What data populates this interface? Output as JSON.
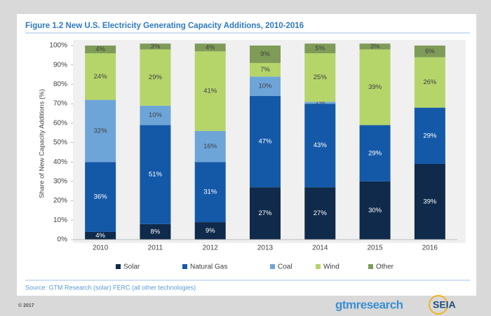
{
  "chart_data": {
    "type": "stacked_bar",
    "title": "Figure 1.2  New U.S. Electricity Generating Capacity Additions, 2010-2016",
    "y_label": "Share of New Capacity Additions (%)",
    "categories": [
      "2010",
      "2011",
      "2012",
      "2013",
      "2014",
      "2015",
      "2016"
    ],
    "series": [
      {
        "name": "Solar",
        "color": "#0f2a4a",
        "values": [
          4,
          8,
          9,
          27,
          27,
          30,
          39
        ],
        "value_labels": [
          "4%",
          "8%",
          "9%",
          "27%",
          "27%",
          "30%",
          "39%"
        ]
      },
      {
        "name": "Natural Gas",
        "color": "#1459a8",
        "values": [
          36,
          51,
          31,
          47,
          43,
          29,
          29
        ],
        "value_labels": [
          "36%",
          "51%",
          "31%",
          "47%",
          "43%",
          "29%",
          "29%"
        ]
      },
      {
        "name": "Coal",
        "color": "#6ea5d8",
        "values": [
          32,
          10,
          16,
          10,
          1,
          null,
          null
        ],
        "value_labels": [
          "32%",
          "10%",
          "16%",
          "10%",
          "1%",
          null,
          null
        ]
      },
      {
        "name": "Wind",
        "color": "#b5d56b",
        "values": [
          24,
          29,
          41,
          7,
          25,
          39,
          26
        ],
        "value_labels": [
          "24%",
          "29%",
          "41%",
          "7%",
          "25%",
          "39%",
          "26%"
        ]
      },
      {
        "name": "Other",
        "color": "#7f9b58",
        "values": [
          4,
          3,
          4,
          9,
          5,
          3,
          6
        ],
        "value_labels": [
          "4%",
          "3%",
          "4%",
          "9%",
          "5%",
          "3%",
          "6%"
        ]
      }
    ],
    "ylim": [
      0,
      100
    ],
    "yticks": [
      {
        "value": 0,
        "label": "0%"
      },
      {
        "value": 10,
        "label": "10%"
      },
      {
        "value": 20,
        "label": "20%"
      },
      {
        "value": 30,
        "label": "30%"
      },
      {
        "value": 40,
        "label": "40%"
      },
      {
        "value": 50,
        "label": "50%"
      },
      {
        "value": 60,
        "label": "60%"
      },
      {
        "value": 70,
        "label": "70%"
      },
      {
        "value": 80,
        "label": "80%"
      },
      {
        "value": 90,
        "label": "90%"
      },
      {
        "value": 100,
        "label": "100%"
      }
    ],
    "source": "Source: GTM Research (solar) FERC (all other technologies)"
  },
  "footer": {
    "copyright": "© 2017",
    "logo_left": "gtmresearch",
    "logo_right": "SEIA"
  }
}
